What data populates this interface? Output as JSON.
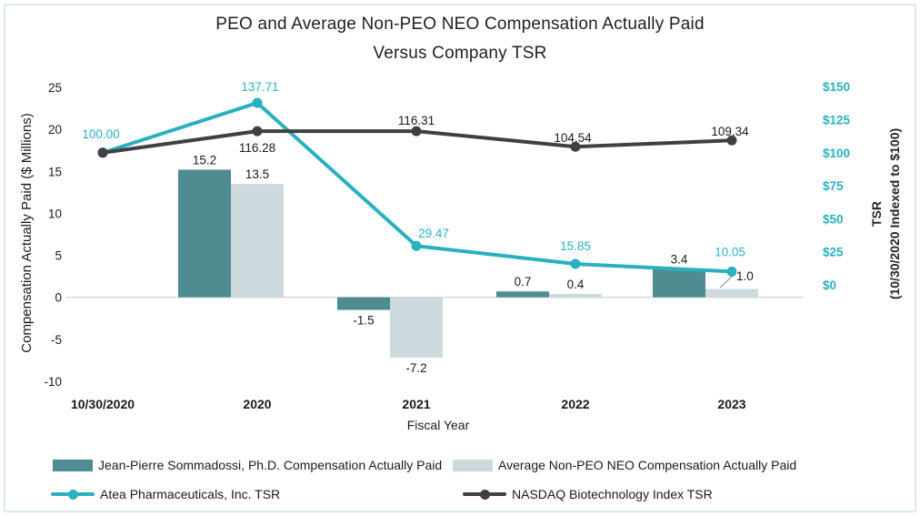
{
  "title": {
    "line1": "PEO and Average Non-PEO NEO Compensation Actually Paid",
    "line2": "Versus Company TSR"
  },
  "axes": {
    "left": {
      "title": "Compensation Actually Paid ($ Millions)",
      "tick_values": [
        25,
        20,
        15,
        10,
        5,
        0,
        -5,
        -10
      ],
      "tick_labels": [
        "25",
        "20",
        "15",
        "10",
        "5",
        "0",
        "-5",
        "-10"
      ]
    },
    "right": {
      "title_line1": "TSR",
      "title_line2": "(10/30/2020 Indexed to $100)",
      "tick_values": [
        150,
        125,
        100,
        75,
        50,
        25,
        0
      ],
      "tick_labels": [
        "$150",
        "$125",
        "$100",
        "$75",
        "$50",
        "$25",
        "$0"
      ]
    },
    "x": {
      "title": "Fiscal Year",
      "categories": [
        "10/30/2020",
        "2020",
        "2021",
        "2022",
        "2023"
      ]
    }
  },
  "chart_data": {
    "type": "combo-bar-line",
    "categories": [
      "10/30/2020",
      "2020",
      "2021",
      "2022",
      "2023"
    ],
    "bar_series": [
      {
        "name": "Jean-Pierre Sommadossi, Ph.D. Compensation Actually Paid",
        "axis": "left",
        "color": "#4F8C92",
        "values": [
          null,
          15.2,
          -1.5,
          0.7,
          3.4
        ],
        "labels": [
          "",
          "15.2",
          "-1.5",
          "0.7",
          "3.4"
        ]
      },
      {
        "name": "Average Non-PEO NEO Compensation Actually Paid",
        "axis": "left",
        "color": "#CDD9DC",
        "values": [
          null,
          13.5,
          -7.2,
          0.4,
          1.0
        ],
        "labels": [
          "",
          "13.5",
          "-7.2",
          "0.4",
          "1.0"
        ]
      }
    ],
    "line_series": [
      {
        "name": "Atea Pharmaceuticals, Inc. TSR",
        "axis": "right",
        "color": "#2AB0BF",
        "values": [
          100.0,
          137.71,
          29.47,
          15.85,
          10.05
        ],
        "labels": [
          "100.00",
          "137.71",
          "29.47",
          "15.85",
          "10.05"
        ]
      },
      {
        "name": "NASDAQ Biotechnology Index TSR",
        "axis": "right",
        "color": "#404040",
        "values": [
          100.0,
          116.28,
          116.31,
          104.54,
          109.34
        ],
        "labels": [
          "",
          "116.28",
          "116.31",
          "104.54",
          "109.34"
        ]
      }
    ],
    "left_axis_range": [
      -10,
      25
    ],
    "right_axis_range": [
      0,
      150
    ],
    "grid": "zero-line-only",
    "legend_position": "bottom"
  },
  "colors": {
    "teal": "#2AB0BF",
    "dark_line": "#404040",
    "peo_bar": "#4F8C92",
    "avg_bar": "#CDD9DC",
    "zero_line": "#D9D9D9",
    "frame": "#DCE9EA",
    "text": "#1A1A1A",
    "callout": "#A6A6A6"
  }
}
